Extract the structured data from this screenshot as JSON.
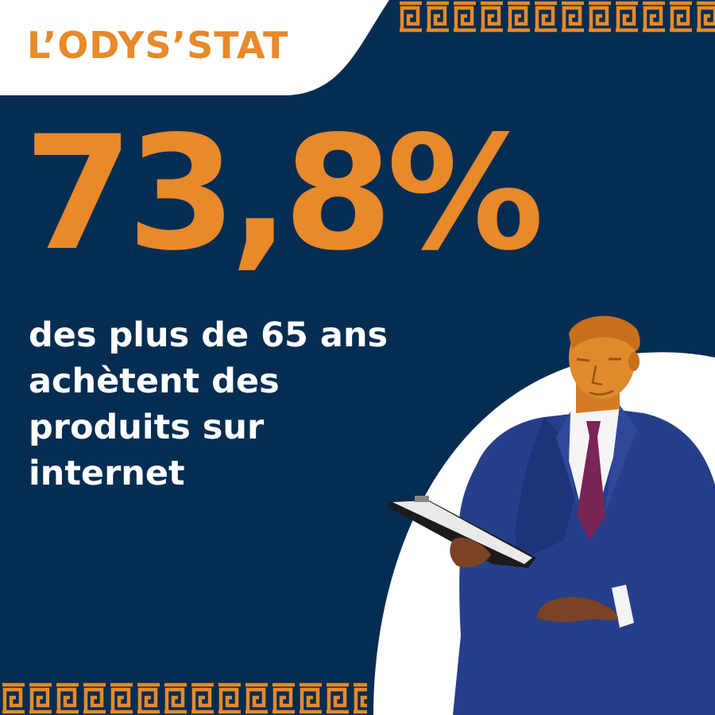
{
  "brand": {
    "logo_text": "L’ODYS’STAT"
  },
  "stat": {
    "value": "73,8%",
    "caption_lines": [
      "des plus de 65 ans",
      "achètent des",
      "produits sur",
      "internet"
    ]
  },
  "illustration": {
    "subject": "statue-businessman",
    "prop": "clipboard"
  },
  "colors": {
    "navy": "#052d52",
    "orange": "#e8892a",
    "white": "#ffffff",
    "suit": "#263f8a",
    "tie": "#7b2456"
  }
}
